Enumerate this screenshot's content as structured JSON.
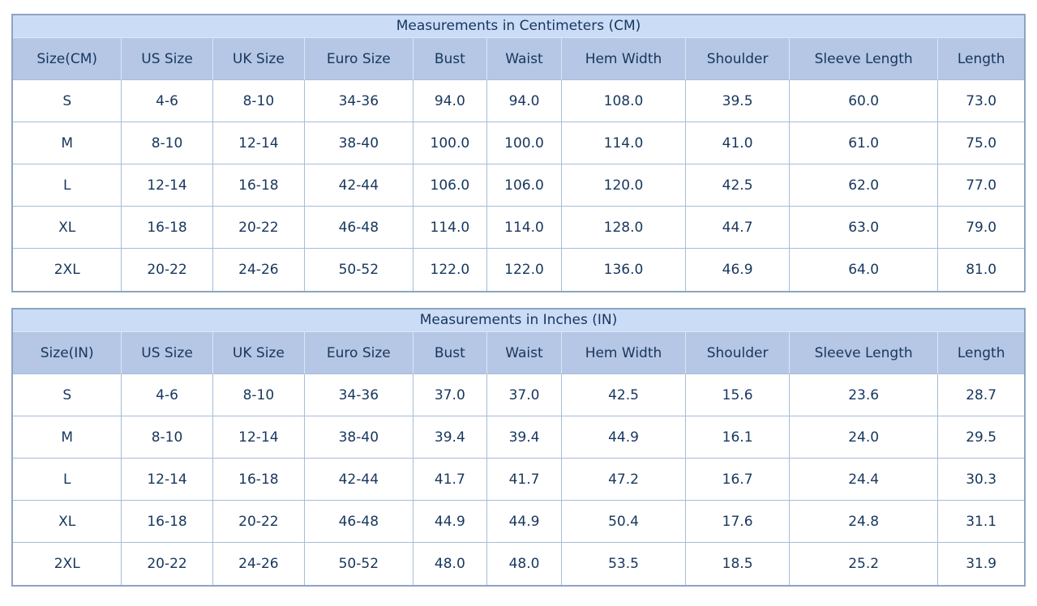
{
  "colors": {
    "title_bg": "#cbdcf6",
    "header_bg": "#b5c7e5",
    "row_bg": "#ffffff",
    "text": "#17365d",
    "grid_line": "#a6bcd9",
    "pale_divider": "#dde6f4",
    "outer_border": "#8fa3c2",
    "page_bg": "#ffffff"
  },
  "chart_data": [
    {
      "type": "table",
      "title": "Measurements in Centimeters (CM)",
      "columns": [
        "Size(CM)",
        "US Size",
        "UK Size",
        "Euro Size",
        "Bust",
        "Waist",
        "Hem Width",
        "Shoulder",
        "Sleeve Length",
        "Length"
      ],
      "rows": [
        [
          "S",
          "4-6",
          "8-10",
          "34-36",
          "94.0",
          "94.0",
          "108.0",
          "39.5",
          "60.0",
          "73.0"
        ],
        [
          "M",
          "8-10",
          "12-14",
          "38-40",
          "100.0",
          "100.0",
          "114.0",
          "41.0",
          "61.0",
          "75.0"
        ],
        [
          "L",
          "12-14",
          "16-18",
          "42-44",
          "106.0",
          "106.0",
          "120.0",
          "42.5",
          "62.0",
          "77.0"
        ],
        [
          "XL",
          "16-18",
          "20-22",
          "46-48",
          "114.0",
          "114.0",
          "128.0",
          "44.7",
          "63.0",
          "79.0"
        ],
        [
          "2XL",
          "20-22",
          "24-26",
          "50-52",
          "122.0",
          "122.0",
          "136.0",
          "46.9",
          "64.0",
          "81.0"
        ]
      ],
      "layout_hints": {
        "title_position": "top-center",
        "grid": "on",
        "row_striping": "none"
      }
    },
    {
      "type": "table",
      "title": "Measurements in Inches (IN)",
      "columns": [
        "Size(IN)",
        "US Size",
        "UK Size",
        "Euro Size",
        "Bust",
        "Waist",
        "Hem Width",
        "Shoulder",
        "Sleeve Length",
        "Length"
      ],
      "rows": [
        [
          "S",
          "4-6",
          "8-10",
          "34-36",
          "37.0",
          "37.0",
          "42.5",
          "15.6",
          "23.6",
          "28.7"
        ],
        [
          "M",
          "8-10",
          "12-14",
          "38-40",
          "39.4",
          "39.4",
          "44.9",
          "16.1",
          "24.0",
          "29.5"
        ],
        [
          "L",
          "12-14",
          "16-18",
          "42-44",
          "41.7",
          "41.7",
          "47.2",
          "16.7",
          "24.4",
          "30.3"
        ],
        [
          "XL",
          "16-18",
          "20-22",
          "46-48",
          "44.9",
          "44.9",
          "50.4",
          "17.6",
          "24.8",
          "31.1"
        ],
        [
          "2XL",
          "20-22",
          "24-26",
          "50-52",
          "48.0",
          "48.0",
          "53.5",
          "18.5",
          "25.2",
          "31.9"
        ]
      ],
      "layout_hints": {
        "title_position": "top-center",
        "grid": "on",
        "row_striping": "none"
      }
    }
  ]
}
